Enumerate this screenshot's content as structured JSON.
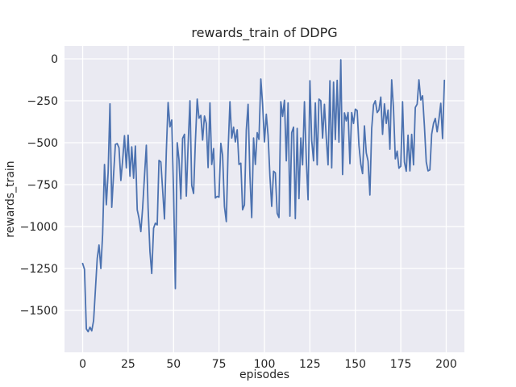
{
  "chart_data": {
    "type": "line",
    "title": "rewards_train of DDPG",
    "xlabel": "episodes",
    "ylabel": "rewards_train",
    "xlim": [
      -10,
      210
    ],
    "ylim": [
      -1750,
      77
    ],
    "grid": true,
    "legend": null,
    "plot_bg_color": "#eaeaf2",
    "grid_color": "#ffffff",
    "line_color": "#4c72b0",
    "text_color": "#262626",
    "x_ticks": [
      {
        "v": 0,
        "label": "0"
      },
      {
        "v": 25,
        "label": "25"
      },
      {
        "v": 50,
        "label": "50"
      },
      {
        "v": 75,
        "label": "75"
      },
      {
        "v": 100,
        "label": "100"
      },
      {
        "v": 125,
        "label": "125"
      },
      {
        "v": 150,
        "label": "150"
      },
      {
        "v": 175,
        "label": "175"
      },
      {
        "v": 200,
        "label": "200"
      }
    ],
    "y_ticks": [
      {
        "v": 0,
        "label": "0"
      },
      {
        "v": -250,
        "label": "−250"
      },
      {
        "v": -500,
        "label": "−500"
      },
      {
        "v": -750,
        "label": "−750"
      },
      {
        "v": -1000,
        "label": "−1000"
      },
      {
        "v": -1250,
        "label": "−1250"
      },
      {
        "v": -1500,
        "label": "−1500"
      }
    ],
    "series": [
      {
        "name": "rewards_train",
        "x_start": 0,
        "x_step": 1,
        "values": [
          -1220,
          -1255,
          -1610,
          -1627,
          -1600,
          -1622,
          -1560,
          -1380,
          -1190,
          -1110,
          -1250,
          -1045,
          -630,
          -870,
          -680,
          -268,
          -885,
          -690,
          -510,
          -505,
          -530,
          -725,
          -605,
          -458,
          -650,
          -455,
          -700,
          -525,
          -712,
          -520,
          -900,
          -950,
          -1030,
          -890,
          -700,
          -515,
          -890,
          -1150,
          -1280,
          -1010,
          -980,
          -990,
          -605,
          -615,
          -780,
          -955,
          -550,
          -260,
          -405,
          -365,
          -800,
          -1370,
          -500,
          -600,
          -835,
          -475,
          -450,
          -818,
          -515,
          -250,
          -755,
          -803,
          -498,
          -240,
          -354,
          -337,
          -484,
          -341,
          -385,
          -648,
          -263,
          -630,
          -535,
          -830,
          -820,
          -825,
          -504,
          -576,
          -881,
          -970,
          -550,
          -255,
          -472,
          -407,
          -495,
          -423,
          -630,
          -622,
          -900,
          -870,
          -423,
          -271,
          -700,
          -946,
          -472,
          -630,
          -440,
          -480,
          -120,
          -270,
          -495,
          -330,
          -456,
          -700,
          -880,
          -670,
          -680,
          -921,
          -946,
          -255,
          -343,
          -247,
          -608,
          -263,
          -938,
          -440,
          -407,
          -953,
          -415,
          -833,
          -472,
          -632,
          -255,
          -600,
          -840,
          -130,
          -487,
          -608,
          -263,
          -632,
          -240,
          -250,
          -472,
          -271,
          -472,
          -632,
          -130,
          -650,
          -139,
          -481,
          -128,
          -497,
          -5,
          -690,
          -322,
          -370,
          -320,
          -625,
          -320,
          -385,
          -300,
          -308,
          -515,
          -628,
          -684,
          -400,
          -561,
          -609,
          -812,
          -417,
          -274,
          -250,
          -320,
          -305,
          -228,
          -450,
          -268,
          -385,
          -305,
          -539,
          -125,
          -300,
          -596,
          -550,
          -652,
          -640,
          -255,
          -615,
          -670,
          -455,
          -668,
          -450,
          -632,
          -290,
          -270,
          -125,
          -245,
          -220,
          -400,
          -615,
          -668,
          -662,
          -450,
          -385,
          -355,
          -435,
          -360,
          -265,
          -475,
          -128
        ]
      }
    ]
  }
}
